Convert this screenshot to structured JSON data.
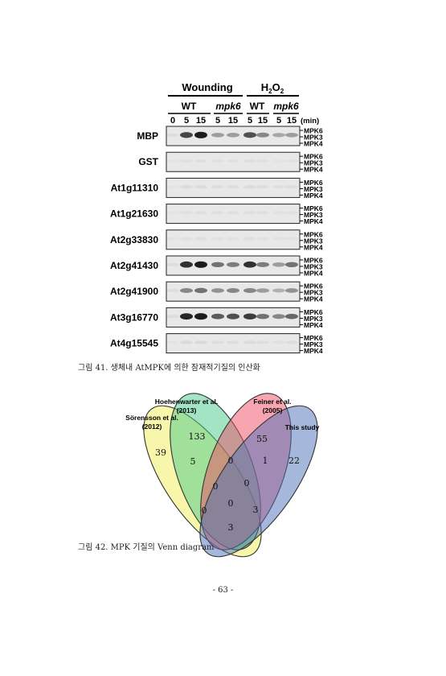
{
  "blot": {
    "treatments": [
      {
        "label": "Wounding",
        "base": "",
        "sub": "",
        "tail": ""
      },
      {
        "label": "",
        "base": "H",
        "sub": "2",
        "tail": "O"
      }
    ],
    "oxygen_sub": "2",
    "genotypes": [
      "WT",
      "mpk6",
      "WT",
      "mpk6"
    ],
    "times": [
      "0",
      "5",
      "15",
      "5",
      "15",
      "5",
      "15",
      "5",
      "15"
    ],
    "unit": "(min)",
    "mpk_labels": [
      "MPK6",
      "MPK3",
      "MPK4"
    ],
    "rows": [
      {
        "substrate": "MBP",
        "intensity": [
          0.05,
          0.75,
          0.95,
          0.35,
          0.35,
          0.7,
          0.45,
          0.3,
          0.35
        ]
      },
      {
        "substrate": "GST",
        "intensity": [
          0.02,
          0.04,
          0.04,
          0.03,
          0.03,
          0.04,
          0.03,
          0.02,
          0.03
        ]
      },
      {
        "substrate": "At1g11310",
        "intensity": [
          0.02,
          0.06,
          0.06,
          0.05,
          0.05,
          0.06,
          0.05,
          0.04,
          0.05
        ]
      },
      {
        "substrate": "At1g21630",
        "intensity": [
          0.02,
          0.04,
          0.04,
          0.04,
          0.04,
          0.04,
          0.04,
          0.03,
          0.04
        ]
      },
      {
        "substrate": "At2g33830",
        "intensity": [
          0.02,
          0.04,
          0.04,
          0.03,
          0.03,
          0.04,
          0.03,
          0.03,
          0.03
        ]
      },
      {
        "substrate": "At2g41430",
        "intensity": [
          0.05,
          0.85,
          0.95,
          0.55,
          0.5,
          0.85,
          0.5,
          0.35,
          0.55
        ]
      },
      {
        "substrate": "At2g41900",
        "intensity": [
          0.05,
          0.45,
          0.55,
          0.4,
          0.45,
          0.45,
          0.35,
          0.25,
          0.4
        ]
      },
      {
        "substrate": "At3g16770",
        "intensity": [
          0.05,
          0.9,
          0.95,
          0.65,
          0.7,
          0.8,
          0.55,
          0.45,
          0.6
        ]
      },
      {
        "substrate": "At4g15545",
        "intensity": [
          0.02,
          0.06,
          0.07,
          0.05,
          0.05,
          0.06,
          0.05,
          0.04,
          0.05
        ]
      }
    ]
  },
  "caption1": "그림 41. 생체내 AtMPK에 의한 잠재적기질의 인산화",
  "venn": {
    "sets": [
      {
        "line1": "Sörensson et al.",
        "line2": "(2012)",
        "color": "#f2ee55"
      },
      {
        "line1": "Hoehenwarter et al.",
        "line2": "(2013)",
        "color": "#48c98a"
      },
      {
        "line1": "Feiner et al.",
        "line2": "(2005)",
        "color": "#ee4b63"
      },
      {
        "line1": "This study",
        "line2": "",
        "color": "#4b6fb5"
      }
    ],
    "counts": [
      "39",
      "133",
      "55",
      "22",
      "5",
      "0",
      "1",
      "0",
      "0",
      "0",
      "0",
      "0",
      "3",
      "3"
    ]
  },
  "caption2": "그림 42. MPK 기질의 Venn diagram",
  "page_number": "- 63 -"
}
